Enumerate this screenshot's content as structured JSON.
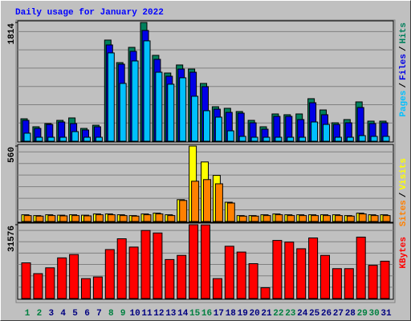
{
  "chart_data": [
    {
      "type": "bar",
      "title": "Daily usage for January 2022",
      "separator": "/",
      "ylim": [
        0,
        1814
      ],
      "yticks": [
        1814
      ],
      "grid": true,
      "series": [
        {
          "name": "Hits",
          "color": "#00805c",
          "values": [
            343,
            221,
            270,
            319,
            356,
            196,
            245,
            1545,
            1201,
            1434,
            1814,
            1312,
            1042,
            1165,
            1103,
            883,
            527,
            503,
            454,
            319,
            221,
            417,
            405,
            417,
            650,
            478,
            282,
            331,
            601,
            307,
            307
          ]
        },
        {
          "name": "Files",
          "color": "#0000e6",
          "values": [
            319,
            196,
            257,
            294,
            270,
            172,
            221,
            1471,
            1177,
            1373,
            1692,
            1251,
            993,
            1103,
            1054,
            834,
            490,
            441,
            429,
            282,
            184,
            380,
            380,
            331,
            588,
            405,
            257,
            282,
            515,
            270,
            282
          ]
        },
        {
          "name": "Pages",
          "color": "#00c0ff",
          "values": [
            123,
            61,
            61,
            61,
            147,
            61,
            61,
            1349,
            883,
            1226,
            1533,
            1054,
            871,
            969,
            687,
            466,
            368,
            159,
            74,
            61,
            61,
            61,
            61,
            61,
            294,
            257,
            61,
            61,
            86,
            74,
            74
          ]
        }
      ]
    },
    {
      "type": "bar",
      "ylim": [
        0,
        560
      ],
      "yticks": [
        560
      ],
      "grid": true,
      "series": [
        {
          "name": "Visits",
          "color": "#ffff00",
          "values": [
            50,
            44,
            50,
            47,
            50,
            47,
            56,
            56,
            50,
            44,
            56,
            62,
            50,
            162,
            560,
            442,
            342,
            143,
            44,
            44,
            50,
            56,
            50,
            50,
            50,
            50,
            50,
            44,
            62,
            50,
            50
          ]
        },
        {
          "name": "Sites",
          "color": "#ff8000",
          "values": [
            44,
            40,
            44,
            42,
            44,
            42,
            50,
            50,
            44,
            40,
            50,
            56,
            44,
            156,
            299,
            311,
            280,
            137,
            40,
            40,
            44,
            50,
            44,
            44,
            44,
            44,
            44,
            40,
            56,
            44,
            44
          ]
        }
      ]
    },
    {
      "type": "bar",
      "ylim": [
        0,
        31576
      ],
      "yticks": [
        31576
      ],
      "grid": true,
      "categories": [
        "1",
        "2",
        "3",
        "4",
        "5",
        "6",
        "7",
        "8",
        "9",
        "10",
        "11",
        "12",
        "13",
        "14",
        "15",
        "16",
        "17",
        "18",
        "19",
        "20",
        "21",
        "22",
        "23",
        "24",
        "25",
        "26",
        "27",
        "28",
        "29",
        "30",
        "31"
      ],
      "category_colors": [
        "#008040",
        "#008040",
        "#000080",
        "#000080",
        "#000080",
        "#000080",
        "#000080",
        "#008040",
        "#008040",
        "#000080",
        "#000080",
        "#000080",
        "#000080",
        "#000080",
        "#008040",
        "#008040",
        "#000080",
        "#000080",
        "#000080",
        "#000080",
        "#000080",
        "#008040",
        "#008040",
        "#000080",
        "#000080",
        "#000080",
        "#000080",
        "#000080",
        "#008040",
        "#008040",
        "#000080"
      ],
      "series": [
        {
          "name": "KBytes",
          "color": "#ff0000",
          "values": [
            15265,
            10650,
            13135,
            17395,
            18815,
            8520,
            9230,
            20945,
            25560,
            22010,
            29110,
            28045,
            16685,
            18460,
            31576,
            31500,
            8520,
            22365,
            19880,
            14910,
            4615,
            24850,
            24140,
            21300,
            25915,
            18460,
            12780,
            12780,
            26270,
            14200,
            15975
          ]
        }
      ]
    }
  ]
}
